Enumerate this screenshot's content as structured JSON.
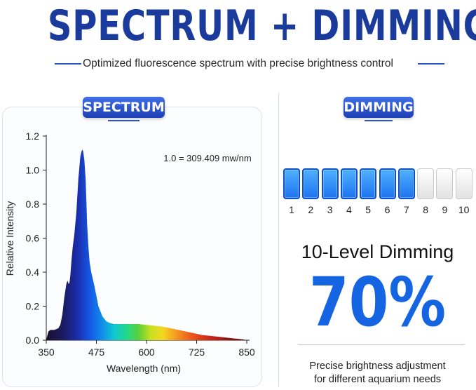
{
  "header": {
    "title": "SPECTRUM + DIMMING",
    "subtitle": "Optimized fluorescence spectrum with precise brightness control"
  },
  "spectrum": {
    "badge": "SPECTRUM"
  },
  "dimming": {
    "badge": "DIMMING",
    "total_levels": 10,
    "active_levels": 7,
    "level_labels": [
      "1",
      "2",
      "3",
      "4",
      "5",
      "6",
      "7",
      "8",
      "9",
      "10"
    ],
    "title": "10-Level Dimming",
    "percent": "70%",
    "description_line1": "Precise brightness adjustment",
    "description_line2": "for different aquarium needs",
    "colors": {
      "active": "#1e74f0",
      "inactive": "#e2e2e2",
      "percent": "#1565e3"
    }
  },
  "chart_data": {
    "type": "area",
    "title": "",
    "annotation": "1.0 = 309.409 mw/nm",
    "xlabel": "Wavelength (nm)",
    "ylabel": "Relative Intensity",
    "xlim": [
      350,
      850
    ],
    "ylim": [
      0,
      1.2
    ],
    "xticks": [
      350,
      475,
      600,
      725,
      850
    ],
    "yticks": [
      "0.0",
      "0.2",
      "0.4",
      "0.6",
      "0.8",
      "1.0",
      "1.2"
    ],
    "grid": false,
    "series": [
      {
        "x": [
          350,
          352,
          355,
          360,
          370,
          380,
          385,
          390,
          395,
          400,
          403,
          406,
          408,
          410,
          413,
          416,
          420,
          425,
          430,
          435,
          438,
          440,
          442,
          445,
          448,
          450,
          452,
          455,
          458,
          462,
          466,
          470,
          475,
          480,
          490,
          500,
          510,
          520,
          530,
          540,
          560,
          580,
          600,
          620,
          640,
          660,
          680,
          700,
          720,
          740,
          760,
          780,
          800,
          820,
          840,
          850
        ],
        "y": [
          0.0,
          0.02,
          0.05,
          0.06,
          0.06,
          0.07,
          0.09,
          0.15,
          0.25,
          0.33,
          0.35,
          0.33,
          0.34,
          0.38,
          0.47,
          0.55,
          0.62,
          0.75,
          0.95,
          1.08,
          1.11,
          1.12,
          1.11,
          1.06,
          0.95,
          0.82,
          0.68,
          0.55,
          0.46,
          0.4,
          0.36,
          0.32,
          0.26,
          0.2,
          0.14,
          0.11,
          0.1,
          0.095,
          0.095,
          0.095,
          0.095,
          0.095,
          0.09,
          0.085,
          0.08,
          0.07,
          0.06,
          0.05,
          0.04,
          0.03,
          0.025,
          0.02,
          0.015,
          0.01,
          0.005,
          0.0
        ]
      }
    ]
  }
}
